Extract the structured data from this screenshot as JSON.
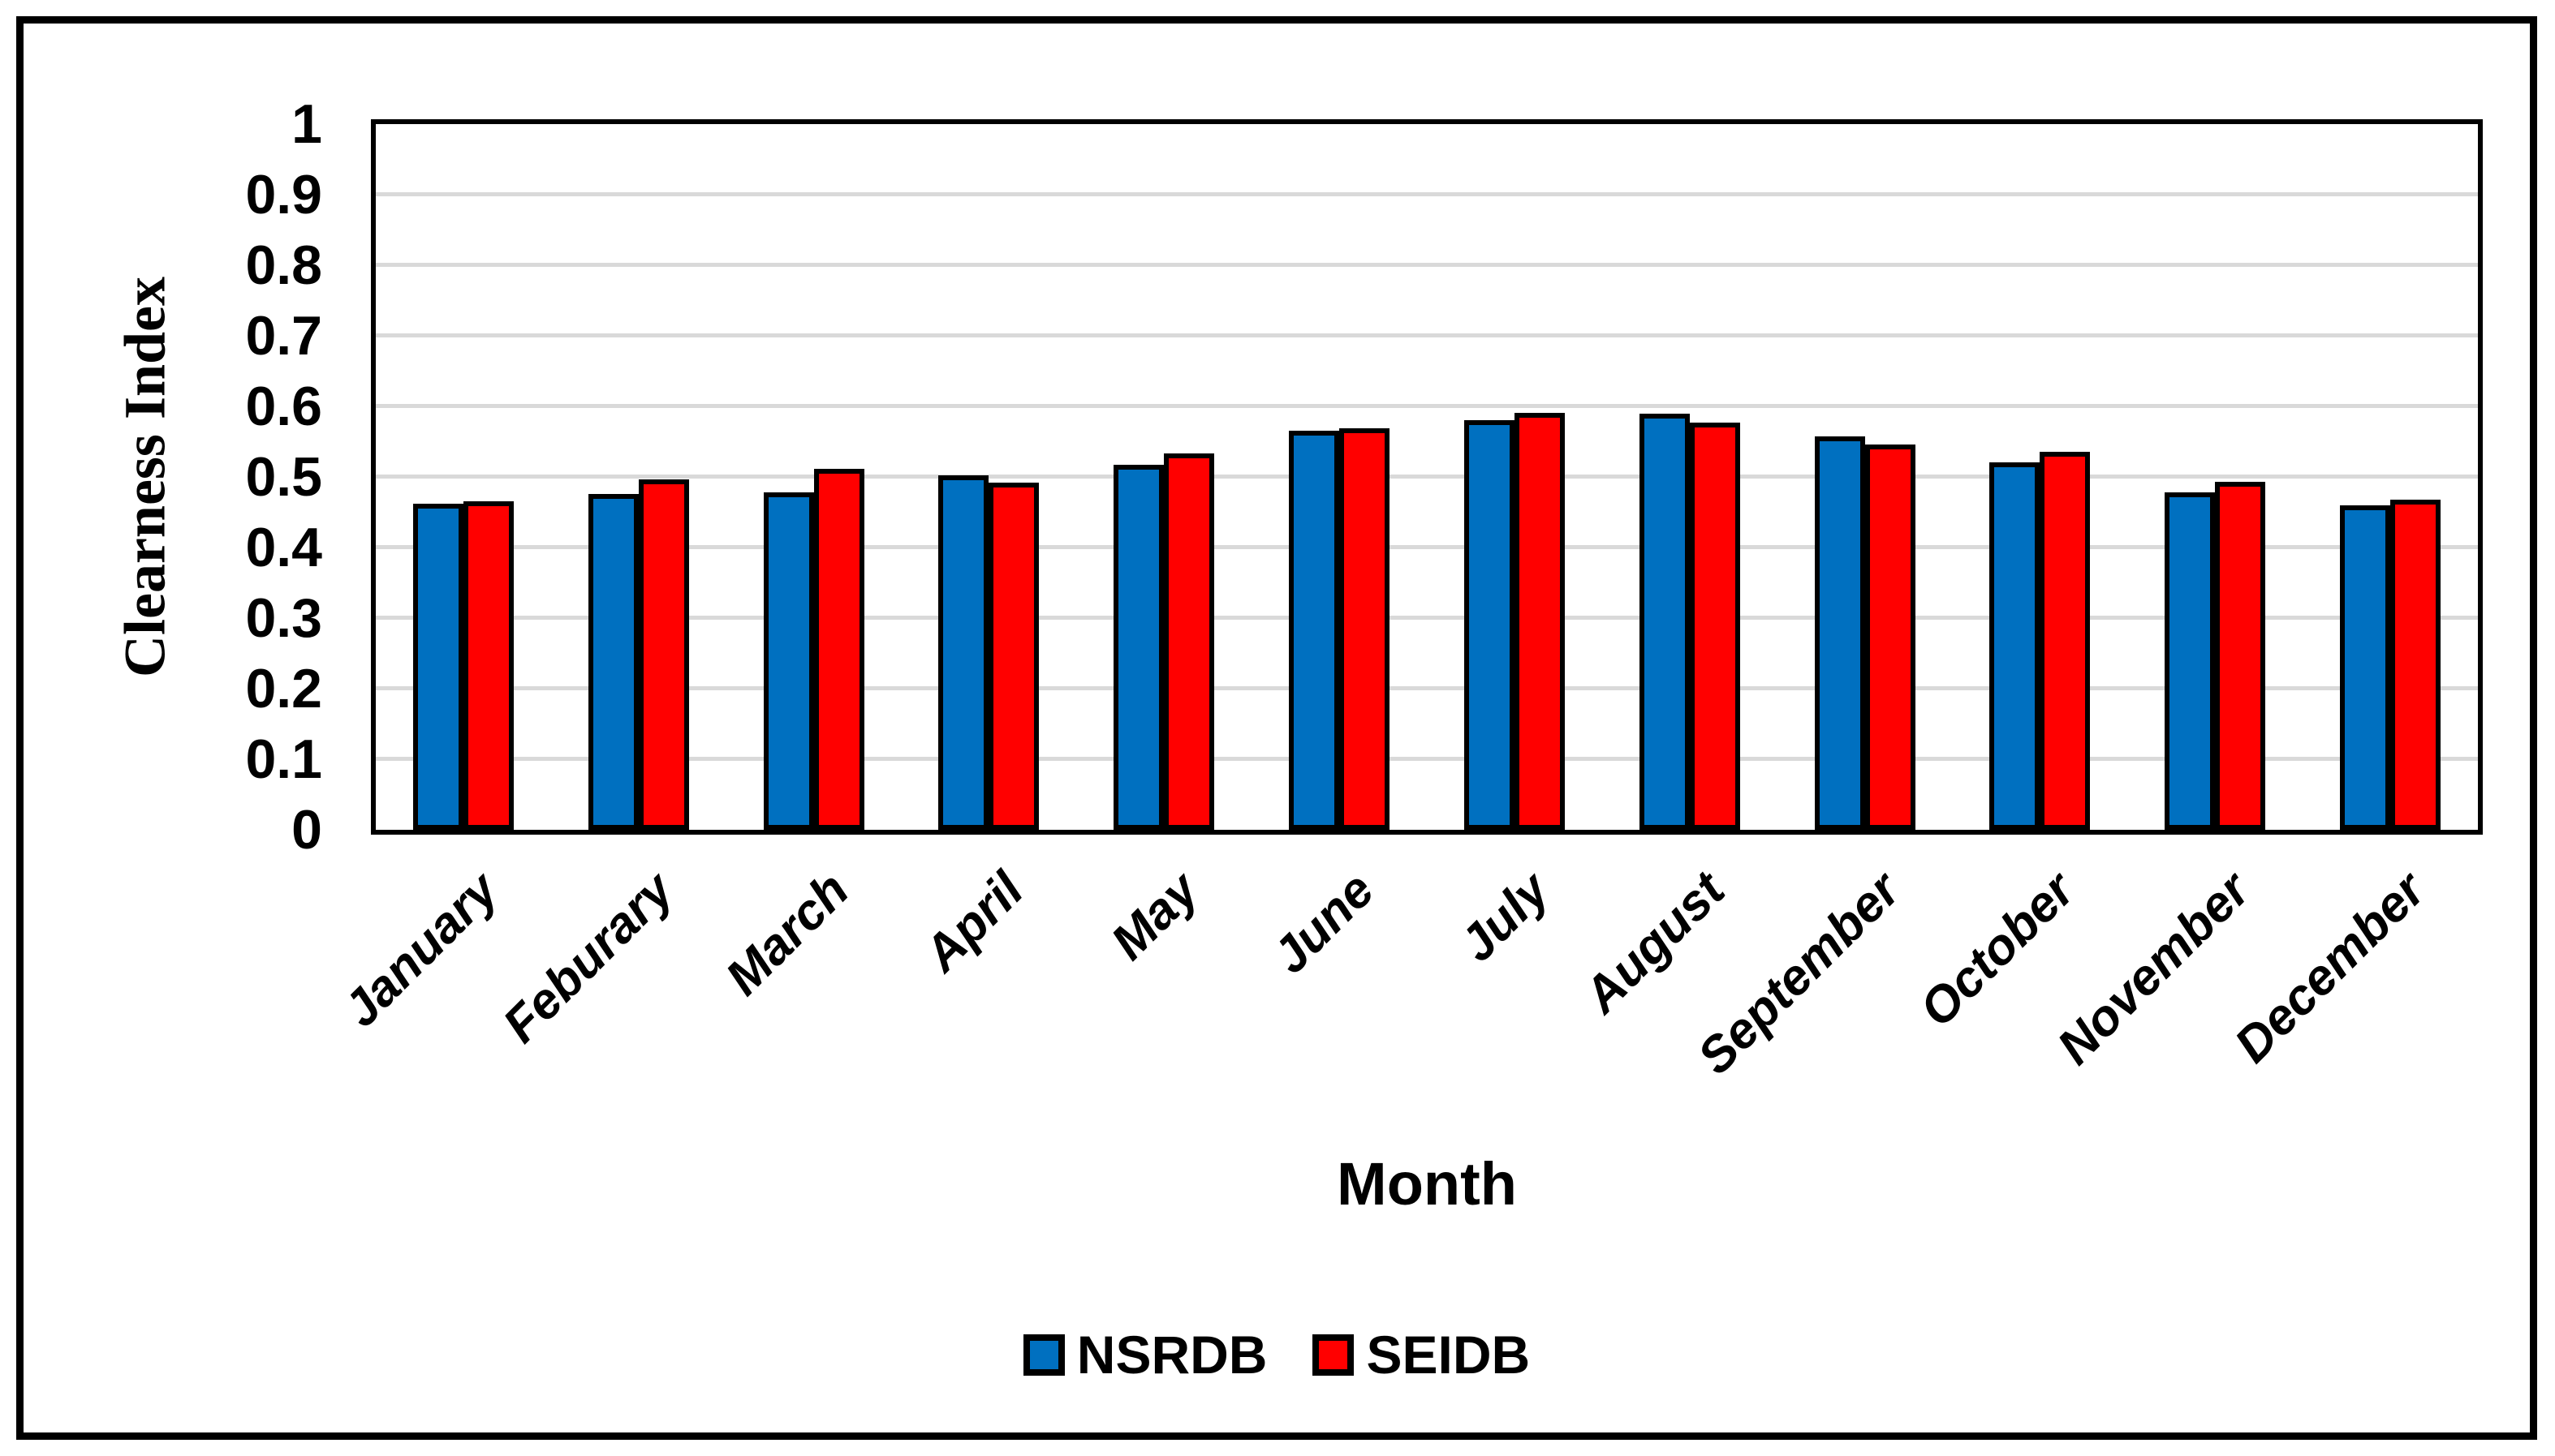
{
  "chart_data": {
    "type": "bar",
    "title": "",
    "xlabel": "Month",
    "ylabel": "Clearness Index",
    "categories": [
      "January",
      "Feburary",
      "March",
      "April",
      "May",
      "June",
      "July",
      "August",
      "September",
      "October",
      "November",
      "December"
    ],
    "series": [
      {
        "name": "NSRDB",
        "color": "#0070C0",
        "values": [
          0.462,
          0.476,
          0.478,
          0.502,
          0.517,
          0.566,
          0.581,
          0.59,
          0.557,
          0.521,
          0.478,
          0.46
        ]
      },
      {
        "name": "SEIDB",
        "color": "#FF0000",
        "values": [
          0.466,
          0.496,
          0.512,
          0.492,
          0.533,
          0.569,
          0.591,
          0.577,
          0.546,
          0.536,
          0.493,
          0.468
        ]
      }
    ],
    "ylim": [
      0,
      1
    ],
    "ytick_step": 0.1,
    "ytick_labels": [
      "0",
      "0.1",
      "0.2",
      "0.3",
      "0.4",
      "0.5",
      "0.6",
      "0.7",
      "0.8",
      "0.9",
      "1"
    ],
    "grid": "horizontal",
    "gridline_color": "#D9D9D9",
    "legend_position": "bottom"
  }
}
